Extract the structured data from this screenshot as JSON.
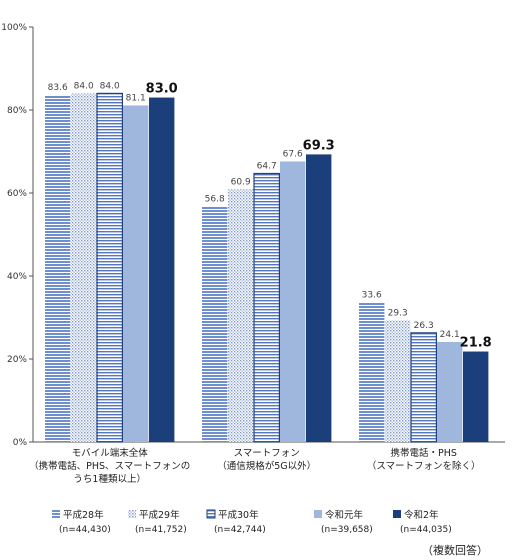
{
  "chart_data": {
    "type": "bar",
    "ylim": [
      0,
      100
    ],
    "yticks": [
      "0%",
      "20%",
      "40%",
      "60%",
      "80%",
      "100%"
    ],
    "grid": false,
    "legend_position": "bottom",
    "categories": [
      [
        "モバイル端末全体",
        "（携帯電話、PHS、スマートフォンの",
        "うち1種類以上）"
      ],
      [
        "スマートフォン",
        "（通信規格が5G以外）"
      ],
      [
        "携帯電話・PHS",
        "（スマートフォンを除く）"
      ]
    ],
    "series": [
      {
        "name": "平成28年",
        "n": "(n=44,430)",
        "values": [
          83.6,
          56.8,
          33.6
        ],
        "labels": [
          "83.6",
          "56.8",
          "33.6"
        ],
        "style": "hstripe-blue"
      },
      {
        "name": "平成29年",
        "n": "(n=41,752)",
        "values": [
          84.0,
          60.9,
          29.3
        ],
        "labels": [
          "84.0",
          "60.9",
          "29.3"
        ],
        "style": "dotted"
      },
      {
        "name": "平成30年",
        "n": "(n=42,744)",
        "values": [
          84.0,
          64.7,
          26.3
        ],
        "labels": [
          "84.0",
          "64.7",
          "26.3"
        ],
        "style": "outlined-hstripe"
      },
      {
        "name": "令和元年",
        "n": "(n=39,658)",
        "values": [
          81.1,
          67.6,
          24.1
        ],
        "labels": [
          "81.1",
          "67.6",
          "24.1"
        ],
        "style": "light-blue"
      },
      {
        "name": "令和2年",
        "n": "(n=44,035)",
        "values": [
          83.0,
          69.3,
          21.8
        ],
        "labels": [
          "83.0",
          "69.3",
          "21.8"
        ],
        "style": "dark-navy"
      }
    ],
    "footnote": "（複数回答）",
    "colors": {
      "stripe": "#6f8fcf",
      "dot": "#7f98c8",
      "outline": "#1f3f7f",
      "light": "#9fb7dd",
      "navy": "#1b3f7a",
      "axis": "#555555"
    }
  }
}
